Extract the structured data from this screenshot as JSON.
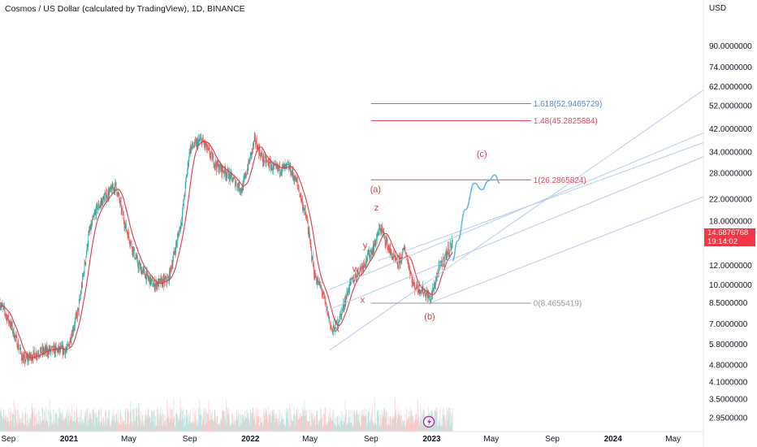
{
  "title": "Cosmos / US Dollar (calculated by TradingView), 1D, BINANCE",
  "currency": "USD",
  "last_price": {
    "value": "14.6876768",
    "countdown": "19:14:02"
  },
  "colors": {
    "up": "#26a69a",
    "down": "#ef5350",
    "ma": "#e0384a",
    "fib_blue": "#5b86c9",
    "fib_red": "#e5485a",
    "fib_grey": "#9598a1",
    "projection": "#5ab8e8",
    "channel": "#b8cbec",
    "wave_label": "#e0384a",
    "badge": "#f23645"
  },
  "chart_data": {
    "type": "candlestick",
    "title": "Cosmos / US Dollar (calculated by TradingView), 1D, BINANCE",
    "y_scale": "log",
    "ylim": [
      2.6,
      120
    ],
    "y_ticks": [
      "90.0000000",
      "74.0000000",
      "62.0000000",
      "52.0000000",
      "42.0000000",
      "34.0000000",
      "28.0000000",
      "22.0000000",
      "18.0000000",
      "12.0000000",
      "10.0000000",
      "8.5000000",
      "7.0000000",
      "5.8000000",
      "4.8000000",
      "4.1000000",
      "3.5000000",
      "2.9500000"
    ],
    "x_ticks": [
      "Sep",
      "2021",
      "May",
      "Sep",
      "2022",
      "May",
      "Sep",
      "2023",
      "May",
      "Sep",
      "2024",
      "May"
    ],
    "x_ticks_bold": [
      "2021",
      "2022",
      "2023",
      "2024"
    ],
    "x_tick_dates": [
      "2020-09-01",
      "2021-01-01",
      "2021-05-01",
      "2021-09-01",
      "2022-01-01",
      "2022-05-01",
      "2022-09-01",
      "2023-01-01",
      "2023-05-01",
      "2023-09-01",
      "2024-01-01",
      "2024-05-01"
    ],
    "x_range": [
      "2020-08-15",
      "2024-07-01"
    ],
    "price_path": [
      [
        "2020-08-15",
        8.5
      ],
      [
        "2020-09-05",
        7.0
      ],
      [
        "2020-10-01",
        5.0
      ],
      [
        "2020-11-01",
        5.4
      ],
      [
        "2020-12-01",
        5.5
      ],
      [
        "2020-12-28",
        5.5
      ],
      [
        "2021-01-20",
        8.0
      ],
      [
        "2021-02-10",
        16.0
      ],
      [
        "2021-02-25",
        20.0
      ],
      [
        "2021-03-15",
        22.5
      ],
      [
        "2021-04-05",
        25.0
      ],
      [
        "2021-04-25",
        17.0
      ],
      [
        "2021-05-20",
        12.0
      ],
      [
        "2021-06-20",
        10.0
      ],
      [
        "2021-07-20",
        10.5
      ],
      [
        "2021-08-15",
        18.0
      ],
      [
        "2021-09-01",
        35.0
      ],
      [
        "2021-09-25",
        38.0
      ],
      [
        "2021-10-25",
        30.0
      ],
      [
        "2021-11-15",
        28.0
      ],
      [
        "2021-12-15",
        24.0
      ],
      [
        "2022-01-10",
        38.0
      ],
      [
        "2022-01-25",
        32.0
      ],
      [
        "2022-02-20",
        29.0
      ],
      [
        "2022-03-20",
        29.5
      ],
      [
        "2022-04-05",
        25.5
      ],
      [
        "2022-04-25",
        18.0
      ],
      [
        "2022-05-10",
        11.0
      ],
      [
        "2022-05-25",
        9.5
      ],
      [
        "2022-06-15",
        6.5
      ],
      [
        "2022-07-01",
        7.5
      ],
      [
        "2022-07-20",
        10.0
      ],
      [
        "2022-08-15",
        12.0
      ],
      [
        "2022-09-05",
        14.0
      ],
      [
        "2022-09-20",
        17.0
      ],
      [
        "2022-10-10",
        13.5
      ],
      [
        "2022-10-25",
        12.0
      ],
      [
        "2022-11-08",
        14.0
      ],
      [
        "2022-11-25",
        10.0
      ],
      [
        "2022-12-15",
        9.5
      ],
      [
        "2022-12-30",
        8.8
      ],
      [
        "2023-01-15",
        11.5
      ],
      [
        "2023-02-01",
        13.5
      ],
      [
        "2023-02-12",
        14.7
      ]
    ],
    "projection": [
      [
        "2023-02-12",
        12.5
      ],
      [
        "2023-02-22",
        15.0
      ],
      [
        "2023-03-10",
        20.0
      ],
      [
        "2023-03-28",
        25.5
      ],
      [
        "2023-04-12",
        24.0
      ],
      [
        "2023-04-25",
        26.0
      ],
      [
        "2023-05-08",
        27.5
      ],
      [
        "2023-05-18",
        25.5
      ]
    ],
    "fib_levels": [
      {
        "label": "1.618(52.9465729)",
        "value": 52.9465729,
        "color": "#5b86c9",
        "from": "2022-09-01",
        "to": "2023-07-20"
      },
      {
        "label": "1.48(45.2825884)",
        "value": 45.2825884,
        "color": "#e5485a",
        "from": "2022-09-01",
        "to": "2023-07-20"
      },
      {
        "label": "1(26.2865824)",
        "value": 26.2865824,
        "color": "#e5485a",
        "from": "2022-09-01",
        "to": "2023-07-20"
      },
      {
        "label": "0(8.4655419)",
        "value": 8.4655419,
        "color": "#9598a1",
        "from": "2022-09-01",
        "to": "2023-07-20"
      }
    ],
    "channel_lines": [
      {
        "from": [
          "2022-06-10",
          5.5
        ],
        "to": [
          "2024-07-01",
          60.0
        ]
      },
      {
        "from": [
          "2022-06-10",
          9.6
        ],
        "to": [
          "2024-07-01",
          40.5
        ]
      },
      {
        "from": [
          "2022-09-15",
          12.5
        ],
        "to": [
          "2024-07-01",
          37.0
        ]
      },
      {
        "from": [
          "2022-06-10",
          8.0
        ],
        "to": [
          "2024-07-01",
          32.5
        ]
      },
      {
        "from": [
          "2022-12-30",
          8.5
        ],
        "to": [
          "2024-07-01",
          22.5
        ]
      }
    ],
    "wave_labels": [
      {
        "text": "(a)",
        "date": "2022-09-10",
        "value": 23.5
      },
      {
        "text": "z",
        "date": "2022-09-12",
        "value": 19.8
      },
      {
        "text": "y",
        "date": "2022-08-20",
        "value": 14.0
      },
      {
        "text": "w",
        "date": "2022-08-01",
        "value": 11.3
      },
      {
        "text": "x",
        "date": "2022-08-15",
        "value": 8.5
      },
      {
        "text": "x",
        "date": "2022-06-25",
        "value": 6.5
      },
      {
        "text": "(b)",
        "date": "2022-12-28",
        "value": 7.3
      },
      {
        "text": "(c)",
        "date": "2023-04-12",
        "value": 32.5
      }
    ]
  }
}
